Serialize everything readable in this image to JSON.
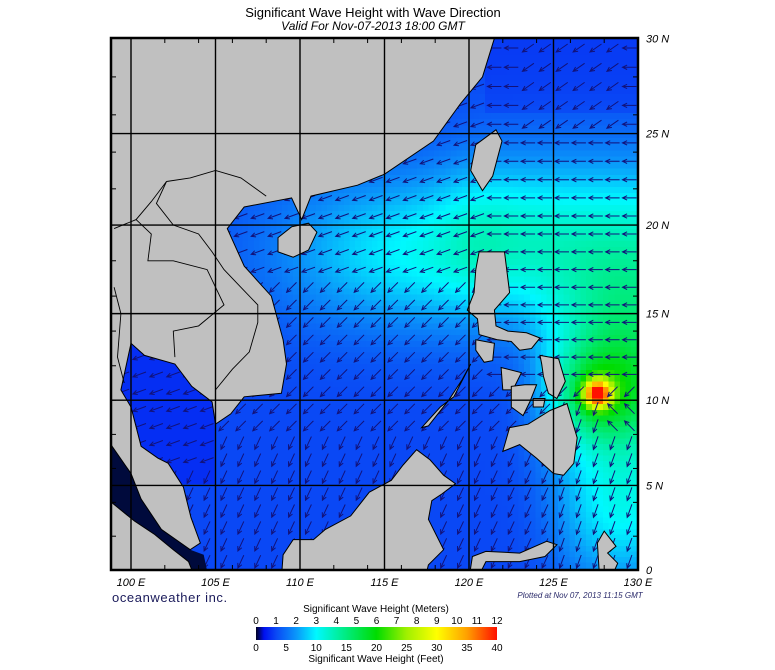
{
  "title": "Significant Wave Height with Wave Direction",
  "subtitle": "Valid For Nov-07-2013 18:00 GMT",
  "map": {
    "projection": "mercator",
    "extent": {
      "lon": [
        98.8,
        130
      ],
      "lat": [
        0,
        30
      ]
    },
    "grid_interval_deg": 5,
    "lon_labels": [
      {
        "lon": 100,
        "label": "100 E"
      },
      {
        "lon": 105,
        "label": "105 E"
      },
      {
        "lon": 110,
        "label": "110 E"
      },
      {
        "lon": 115,
        "label": "115 E"
      },
      {
        "lon": 120,
        "label": "120 E"
      },
      {
        "lon": 125,
        "label": "125 E"
      },
      {
        "lon": 130,
        "label": "130 E"
      }
    ],
    "lat_labels": [
      {
        "lat": 30,
        "label": "30 N"
      },
      {
        "lat": 25,
        "label": "25 N"
      },
      {
        "lat": 20,
        "label": "20 N"
      },
      {
        "lat": 15,
        "label": "15 N"
      },
      {
        "lat": 10,
        "label": "10 N"
      },
      {
        "lat": 5,
        "label": "5 N"
      },
      {
        "lat": 0,
        "label": "0"
      }
    ],
    "land_color": "#c0c0c0",
    "arrow_color": "#12127a",
    "storm_peak": {
      "lon": 127.6,
      "lat": 10.4,
      "height_m": 11.5
    }
  },
  "branding": "oceanweather inc.",
  "plotted": "Plotted at Nov 07, 2013 11:15 GMT",
  "legend": {
    "title_meters": "Significant Wave Height (Meters)",
    "title_feet": "Significant Wave Height (Feet)",
    "meters": [
      "0",
      "1",
      "2",
      "3",
      "4",
      "5",
      "6",
      "7",
      "8",
      "9",
      "10",
      "11",
      "12"
    ],
    "feet": [
      "0",
      "5",
      "10",
      "15",
      "20",
      "25",
      "30",
      "35",
      "40"
    ],
    "color_scale": [
      {
        "m": 0,
        "color": "#000020"
      },
      {
        "m": 0.4,
        "color": "#0010f0"
      },
      {
        "m": 1,
        "color": "#0a48f5"
      },
      {
        "m": 2,
        "color": "#0a96fa"
      },
      {
        "m": 3,
        "color": "#00f8ff"
      },
      {
        "m": 4,
        "color": "#00f0a8"
      },
      {
        "m": 6,
        "color": "#00dc00"
      },
      {
        "m": 7.5,
        "color": "#a0f000"
      },
      {
        "m": 9,
        "color": "#ffff00"
      },
      {
        "m": 10.5,
        "color": "#ffa000"
      },
      {
        "m": 12,
        "color": "#ff1000"
      }
    ]
  }
}
